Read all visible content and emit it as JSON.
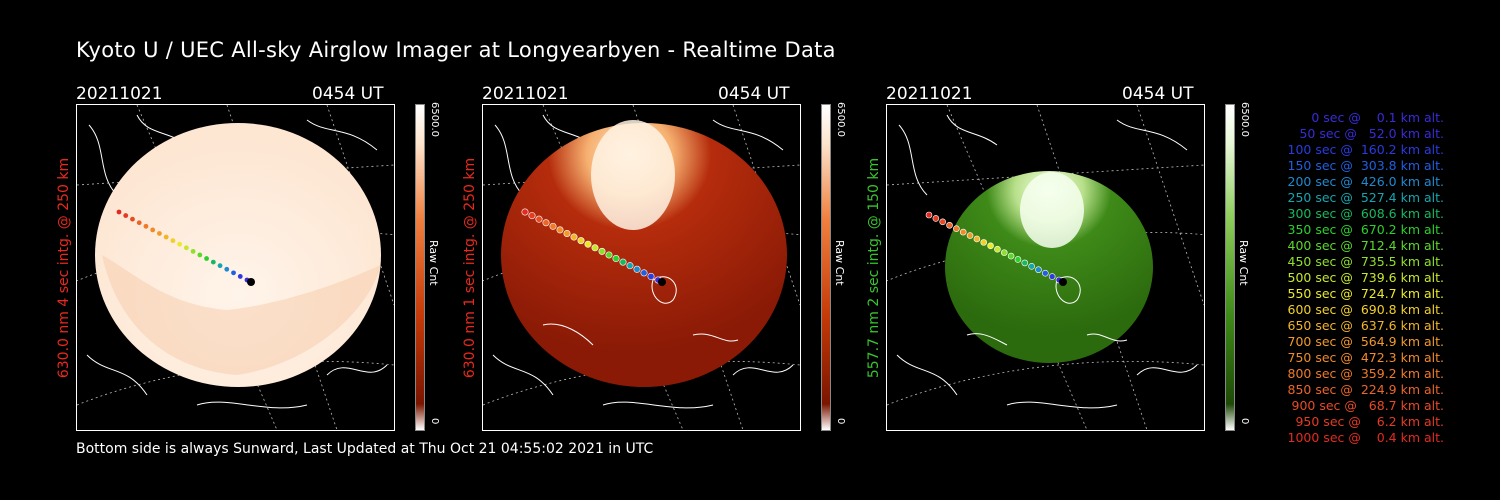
{
  "title": "Kyoto U / UEC All-sky Airglow Imager at Longyearbyen - Realtime Data",
  "footer": "Bottom side is always Sunward, Last Updated at Thu Oct 21 04:55:02 2021 in UTC",
  "panels": [
    {
      "date": "20211021",
      "time": "0454 UT",
      "ylabel": "630.0 nm 4 sec intg. @ 250 km",
      "label_color": "#e8291c",
      "cb_max": "6500.0",
      "cb_min": "0",
      "cb_label": "Raw Cnt"
    },
    {
      "date": "20211021",
      "time": "0454 UT",
      "ylabel": "630.0 nm 1 sec intg. @ 250 km",
      "label_color": "#e8291c",
      "cb_max": "6500.0",
      "cb_min": "0",
      "cb_label": "Raw Cnt"
    },
    {
      "date": "20211021",
      "time": "0454 UT",
      "ylabel": "557.7 nm 2 sec intg. @ 150 km",
      "label_color": "#38c42e",
      "cb_max": "6500.0",
      "cb_min": "0",
      "cb_label": "Raw Cnt"
    }
  ],
  "legend": [
    {
      "text": "   0 sec @    0.1 km alt.",
      "color": "#3a2bd8"
    },
    {
      "text": "  50 sec @   52.0 km alt.",
      "color": "#3a2bd8"
    },
    {
      "text": " 100 sec @  160.2 km alt.",
      "color": "#2a3be0"
    },
    {
      "text": " 150 sec @  303.8 km alt.",
      "color": "#1f5fe0"
    },
    {
      "text": " 200 sec @  426.0 km alt.",
      "color": "#1f8ad0"
    },
    {
      "text": " 250 sec @  527.4 km alt.",
      "color": "#14a6b0"
    },
    {
      "text": " 300 sec @  608.6 km alt.",
      "color": "#18b860"
    },
    {
      "text": " 350 sec @  670.2 km alt.",
      "color": "#2cd02c"
    },
    {
      "text": " 400 sec @  712.4 km alt.",
      "color": "#5cd82a"
    },
    {
      "text": " 450 sec @  735.5 km alt.",
      "color": "#8fe02a"
    },
    {
      "text": " 500 sec @  739.6 km alt.",
      "color": "#c6e82a"
    },
    {
      "text": " 550 sec @  724.7 km alt.",
      "color": "#eaea28"
    },
    {
      "text": " 600 sec @  690.8 km alt.",
      "color": "#f2d028"
    },
    {
      "text": " 650 sec @  637.6 km alt.",
      "color": "#f2b428"
    },
    {
      "text": " 700 sec @  564.9 km alt.",
      "color": "#f29a28"
    },
    {
      "text": " 750 sec @  472.3 km alt.",
      "color": "#f28a28"
    },
    {
      "text": " 800 sec @  359.2 km alt.",
      "color": "#f07a28"
    },
    {
      "text": " 850 sec @  224.9 km alt.",
      "color": "#ec6428"
    },
    {
      "text": " 900 sec @   68.7 km alt.",
      "color": "#e84a24"
    },
    {
      "text": " 950 sec @    6.2 km alt.",
      "color": "#e63a22"
    },
    {
      "text": "1000 sec @    0.4 km alt.",
      "color": "#e42a20"
    }
  ],
  "colors": {
    "track": [
      "#3a2bd8",
      "#2a3be0",
      "#1f5fe0",
      "#1f8ad0",
      "#14a6b0",
      "#18b860",
      "#2cd02c",
      "#5cd82a",
      "#8fe02a",
      "#c6e82a",
      "#eaea28",
      "#f2d028",
      "#f2b428",
      "#f29a28",
      "#f28a28",
      "#f07a28",
      "#ec6428",
      "#e84a24",
      "#e63a22",
      "#e42a20"
    ]
  }
}
